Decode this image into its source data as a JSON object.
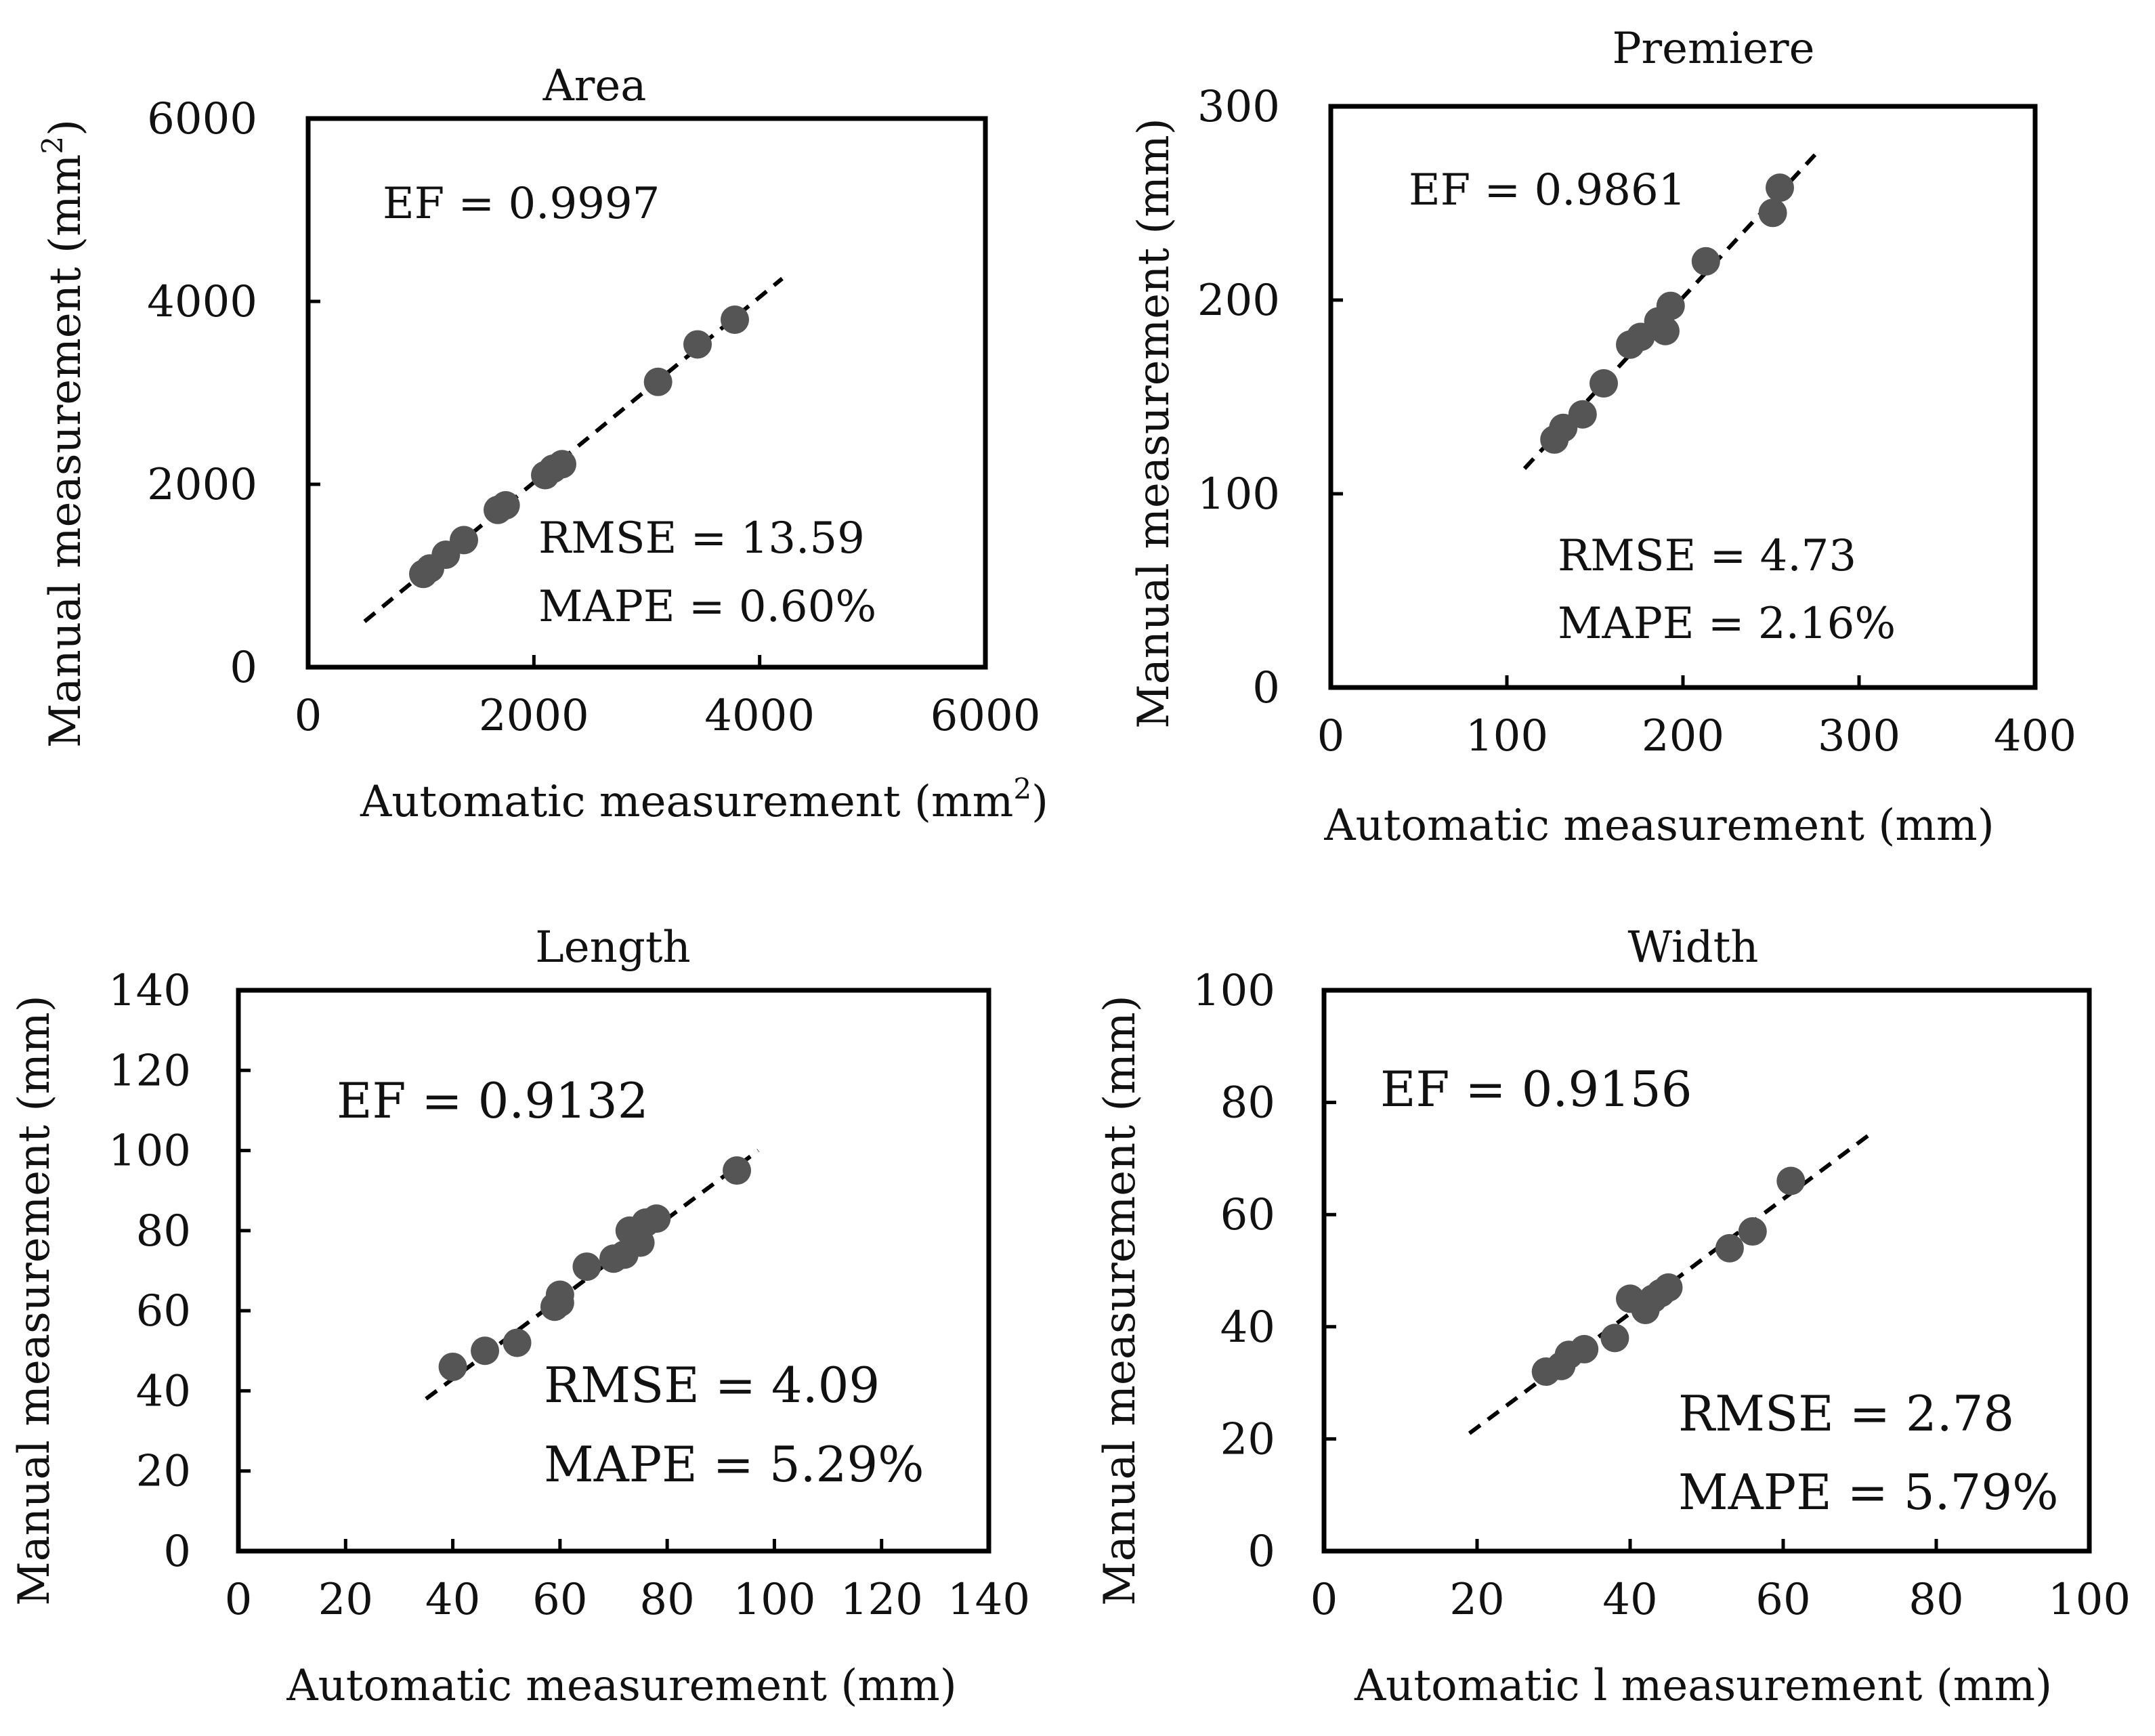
{
  "colors": {
    "marker": "#555555",
    "axis": "#000000",
    "text": "#111111",
    "fit_line": "#000000"
  },
  "chart_data": [
    {
      "type": "scatter",
      "title": "Area",
      "xlabel": "Automatic measurement (mm",
      "xlabel_sup": "2",
      "xlabel_end": ")",
      "ylabel": "Manual measurement (mm",
      "ylabel_sup": "2",
      "ylabel_end": ")",
      "xlim": [
        0,
        6000
      ],
      "ylim": [
        0,
        6000
      ],
      "xticks": [
        0,
        2000,
        4000,
        6000
      ],
      "yticks": [
        0,
        2000,
        4000,
        6000
      ],
      "ef": "EF = 0.9997",
      "rmse": "RMSE = 13.59",
      "mape": "MAPE = 0.60%",
      "fit_line": {
        "x": [
          500,
          4200
        ],
        "y": [
          500,
          4250
        ]
      },
      "points": {
        "x": [
          1020,
          1080,
          1220,
          1380,
          1680,
          1750,
          2100,
          2170,
          2250,
          3100,
          3450,
          3780
        ],
        "y": [
          1020,
          1080,
          1230,
          1390,
          1720,
          1770,
          2100,
          2170,
          2220,
          3120,
          3530,
          3800
        ]
      }
    },
    {
      "type": "scatter",
      "title": "Premiere",
      "xlabel": "Automatic measurement (mm)",
      "ylabel": "Manual measurement (mm)",
      "xlim": [
        0,
        400
      ],
      "ylim": [
        0,
        300
      ],
      "xticks": [
        0,
        100,
        200,
        300,
        400
      ],
      "yticks": [
        0,
        100,
        200,
        300
      ],
      "ef": "EF = 0.9861",
      "rmse": "RMSE = 4.73",
      "mape": "MAPE = 2.16%",
      "fit_line": {
        "x": [
          110,
          275
        ],
        "y": [
          113,
          275
        ]
      },
      "points": {
        "x": [
          127,
          132,
          143,
          155,
          170,
          176,
          186,
          190,
          193,
          213,
          251,
          255
        ],
        "y": [
          128,
          134,
          141,
          157,
          177,
          181,
          189,
          184,
          197,
          220,
          245,
          258
        ]
      }
    },
    {
      "type": "scatter",
      "title": "Length",
      "xlabel": "Automatic measurement (mm)",
      "ylabel": "Manual  measurement (mm)",
      "xlim": [
        0,
        140
      ],
      "ylim": [
        0,
        140
      ],
      "xticks": [
        0,
        20,
        40,
        60,
        80,
        100,
        120,
        140
      ],
      "yticks": [
        0,
        20,
        40,
        60,
        80,
        100,
        120,
        140
      ],
      "ef": "EF = 0.9132",
      "rmse": "RMSE = 4.09",
      "mape": "MAPE = 5.29%",
      "fit_line": {
        "x": [
          35,
          97
        ],
        "y": [
          38,
          100
        ]
      },
      "points": {
        "x": [
          40,
          46,
          52,
          59,
          60,
          60,
          65,
          70,
          72,
          73,
          74,
          75,
          76,
          78,
          93
        ],
        "y": [
          46,
          50,
          52,
          61,
          62,
          64,
          71,
          73,
          74,
          80,
          79,
          77,
          82,
          83,
          95
        ]
      }
    },
    {
      "type": "scatter",
      "title": "Width",
      "xlabel": "Automatic l measurement (mm)",
      "ylabel": "Manual   measurement (mm)",
      "xlim": [
        0,
        100
      ],
      "ylim": [
        0,
        100
      ],
      "xticks": [
        0,
        20,
        40,
        60,
        80,
        100
      ],
      "yticks": [
        0,
        20,
        40,
        60,
        80,
        100
      ],
      "ef": "EF = 0.9156",
      "rmse": "RMSE = 2.78",
      "mape": "MAPE = 5.79%",
      "fit_line": {
        "x": [
          19,
          72
        ],
        "y": [
          21,
          75
        ]
      },
      "points": {
        "x": [
          29,
          31,
          32,
          34,
          38,
          40,
          42,
          42,
          43,
          44,
          45,
          53,
          56,
          61
        ],
        "y": [
          32,
          33,
          35,
          36,
          38,
          45,
          43,
          44,
          45,
          46,
          47,
          54,
          57,
          66
        ]
      }
    }
  ]
}
